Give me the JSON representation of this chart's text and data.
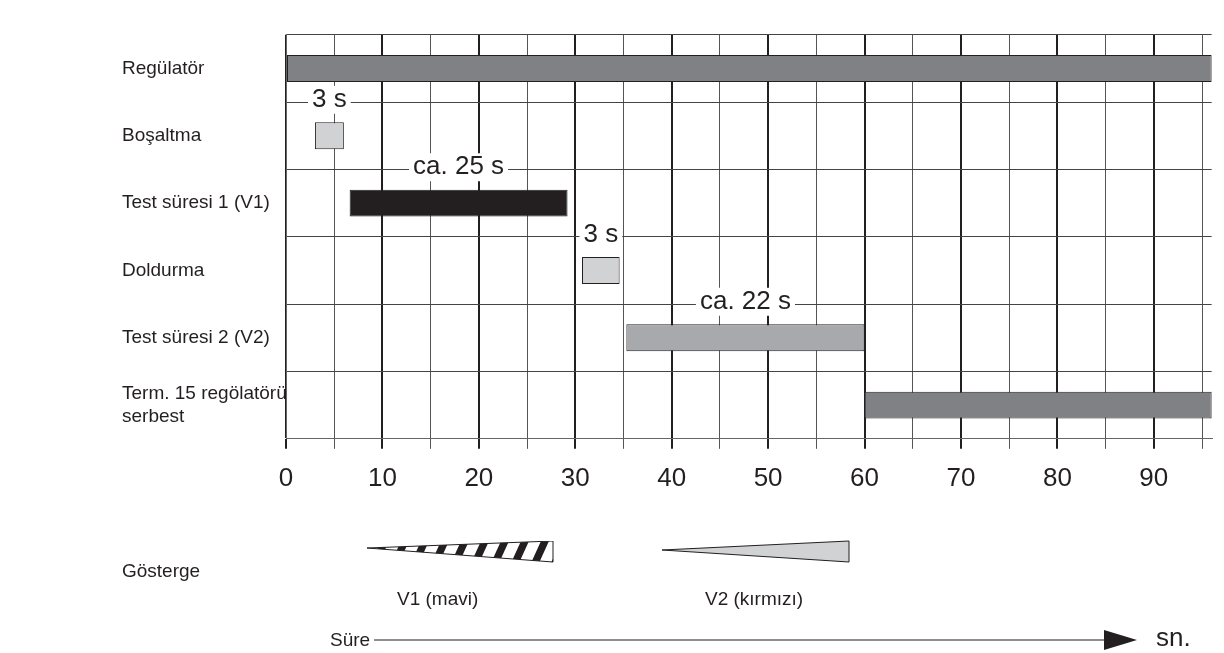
{
  "chart_data": {
    "type": "bar",
    "orientation": "horizontal",
    "categories": [
      "Regülatör",
      "Boşaltma",
      "Test süresi 1 (V1)",
      "Doldurma",
      "Test süresi 2 (V2)",
      "Term. 15 regölatörü serbest"
    ],
    "base": [
      0,
      3,
      6.6,
      30.7,
      35.3,
      60
    ],
    "values": [
      96,
      3,
      22.6,
      3.9,
      24.7,
      36
    ],
    "colors": [
      "#808184",
      "#d1d2d4",
      "#231f20",
      "#d1d2d4",
      "#a7a9ac",
      "#808184"
    ],
    "xlim": [
      0,
      96
    ],
    "xticks": [
      0,
      {
        "value": 5,
        "label": null
      },
      10,
      {
        "value": 15,
        "label": null
      },
      20,
      {
        "value": 25,
        "label": null
      },
      30,
      {
        "value": 35,
        "label": null
      },
      40,
      {
        "value": 45,
        "label": null
      },
      50,
      {
        "value": 55,
        "label": null
      },
      60,
      {
        "value": 65,
        "label": null
      },
      70,
      {
        "value": 75,
        "label": null
      },
      80,
      {
        "value": 85,
        "label": null
      },
      90,
      {
        "value": 95,
        "label": null
      }
    ],
    "grid": true,
    "annotations": [
      "3 s",
      "ca. 25 s",
      "3 s",
      "ca. 22 s",
      "Süre",
      "Gösterge",
      "V1 (mavi)",
      "V2 (kırmızı)",
      "sn."
    ]
  }
}
